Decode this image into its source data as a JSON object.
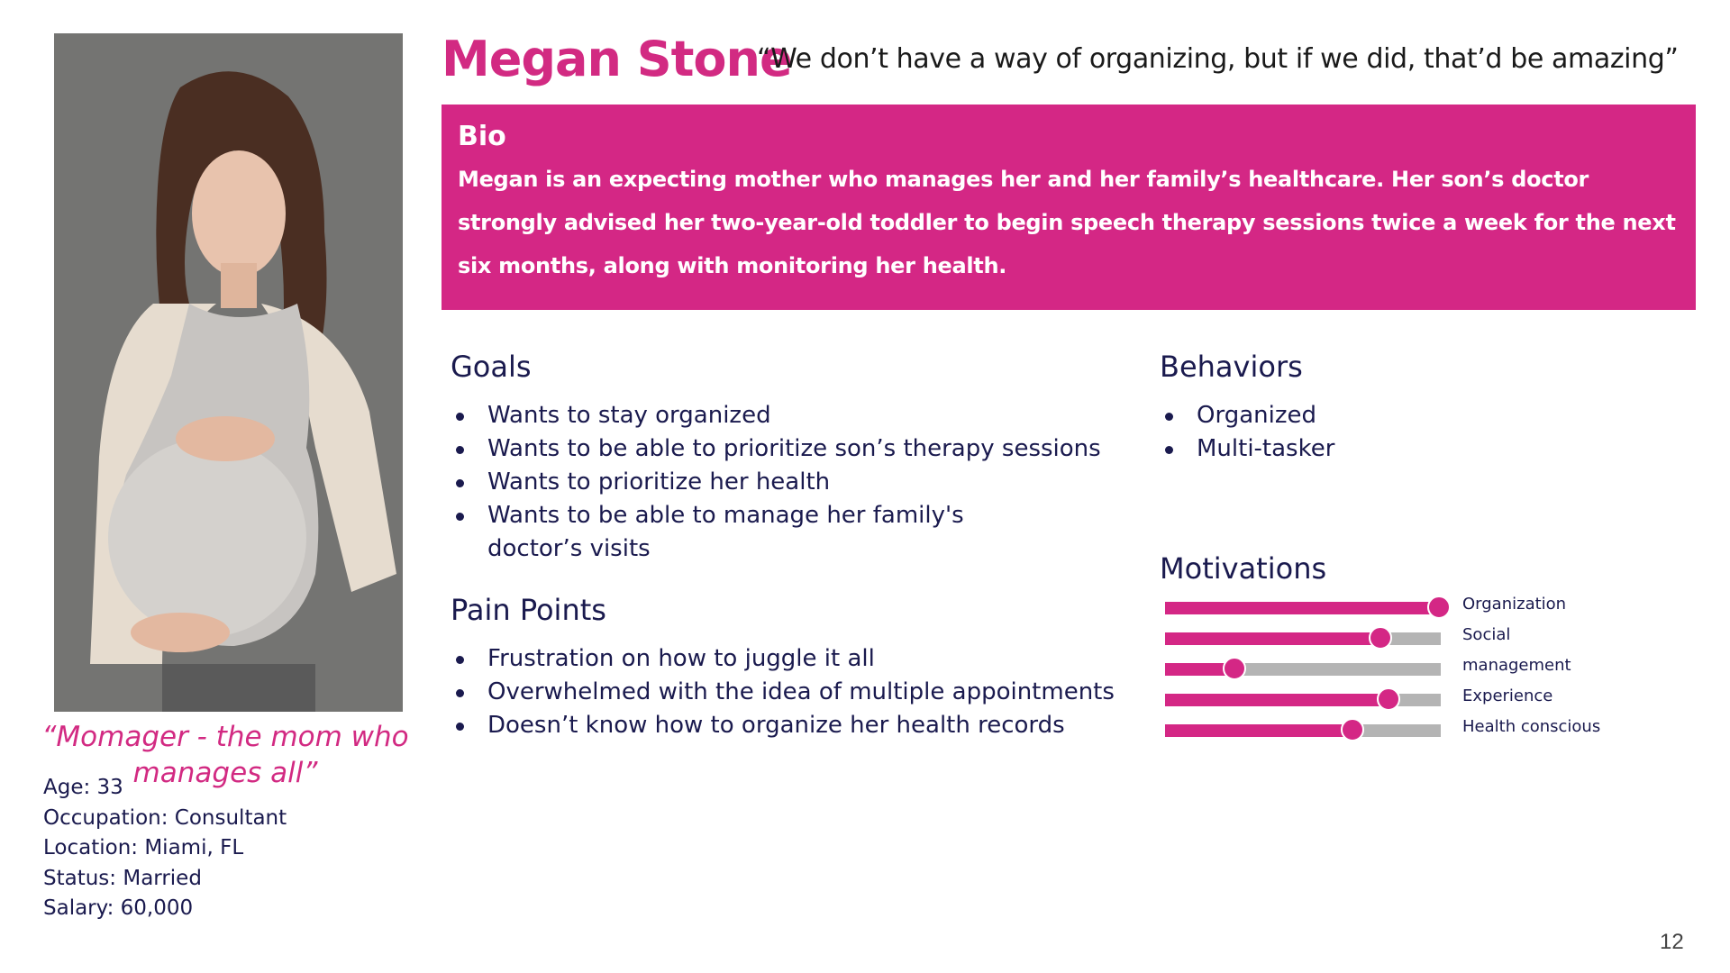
{
  "persona": {
    "name": "Megan Stone",
    "quote": "“We don’t have a way of organizing, but if we did, that’d be amazing”",
    "tagline": "“Momager - the mom who manages all”",
    "details": [
      "Age: 33",
      "Occupation: Consultant",
      "Location: Miami, FL",
      "Status: Married",
      "Salary: 60,000"
    ]
  },
  "bio": {
    "title": "Bio",
    "text": "Megan is an expecting mother who manages her and her family’s healthcare. Her son’s doctor strongly advised her two-year-old toddler to begin speech therapy sessions twice a week for the next six months, along with monitoring her health."
  },
  "goals": {
    "title": "Goals",
    "items": [
      "Wants to stay organized",
      "Wants to be able to prioritize son’s therapy sessions",
      "Wants to prioritize her health",
      "Wants to be able to manage her family's doctor’s visits"
    ]
  },
  "pain_points": {
    "title": "Pain Points",
    "items": [
      "Frustration on how to juggle it all",
      "Overwhelmed with the idea of multiple appointments",
      "Doesn’t know how to organize her health records"
    ]
  },
  "behaviors": {
    "title": "Behaviors",
    "items": [
      "Organized",
      "Multi-tasker"
    ]
  },
  "motivations": {
    "title": "Motivations",
    "labels": [
      "Organization",
      "Social",
      "management",
      "Experience",
      "Health conscious"
    ],
    "levels": [
      1.0,
      0.78,
      0.25,
      0.81,
      0.68
    ]
  },
  "page_number": "12",
  "colors": {
    "accent": "#d42785",
    "text_dark": "#1a1a4e",
    "track": "#b4b4b4"
  }
}
